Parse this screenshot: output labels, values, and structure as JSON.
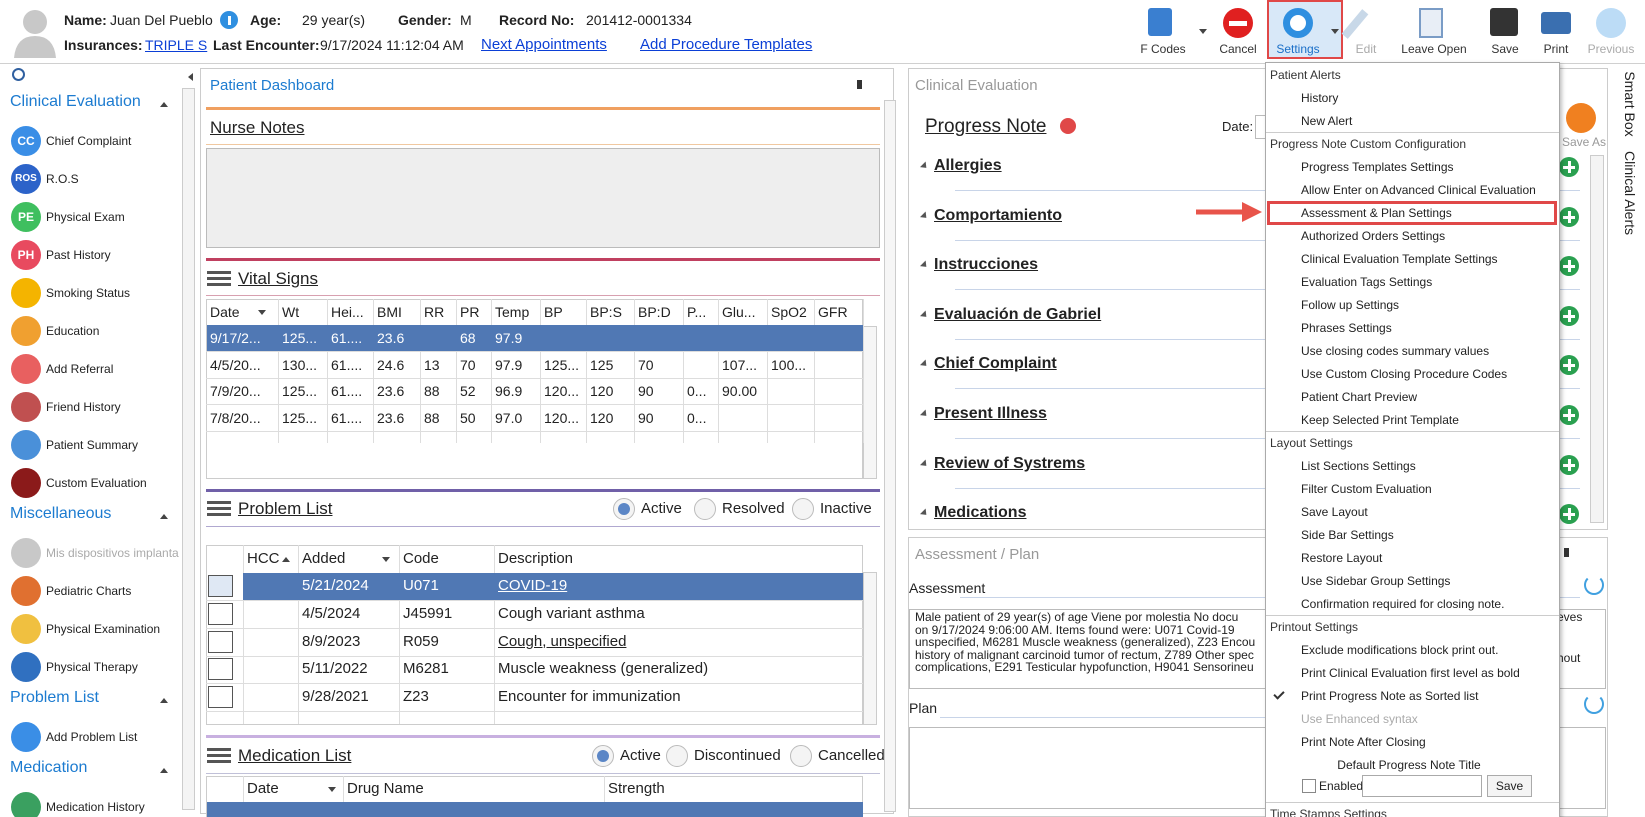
{
  "header": {
    "name_label": "Name:",
    "name": "Juan Del Pueblo",
    "age_label": "Age:",
    "age": "29 year(s)",
    "gender_label": "Gender:",
    "gender": "M",
    "record_label": "Record No:",
    "record": "201412-0001334",
    "insurances_label": "Insurances:",
    "insurance": "TRIPLE S",
    "last_label": "Last Encounter:",
    "last": "9/17/2024 11:12:04 AM",
    "links": [
      "Next Appointments",
      "Add Procedure Templates"
    ]
  },
  "toolbar": {
    "buttons": [
      {
        "label": "F Codes"
      },
      {
        "label": "Cancel"
      },
      {
        "label": "Settings",
        "active": true
      },
      {
        "label": "Edit",
        "disabled": true
      },
      {
        "label": "Leave Open"
      },
      {
        "label": "Save"
      },
      {
        "label": "Print"
      },
      {
        "label": "Previous",
        "disabled": true
      }
    ]
  },
  "sidebar": {
    "sections": [
      {
        "title": "Clinical Evaluation",
        "items": [
          {
            "label": "Chief Complaint",
            "icon": "CC"
          },
          {
            "label": "R.O.S",
            "icon": "ROS"
          },
          {
            "label": "Physical Exam",
            "icon": "PE"
          },
          {
            "label": "Past History",
            "icon": "PH"
          },
          {
            "label": "Smoking Status"
          },
          {
            "label": "Education"
          },
          {
            "label": "Add Referral"
          },
          {
            "label": "Friend History"
          },
          {
            "label": "Patient Summary"
          },
          {
            "label": "Custom Evaluation"
          }
        ]
      },
      {
        "title": "Miscellaneous",
        "items": [
          {
            "label": "Mis dispositivos implanta",
            "disabled": true
          },
          {
            "label": "Pediatric Charts"
          },
          {
            "label": "Physical Examination"
          },
          {
            "label": "Physical Therapy"
          }
        ]
      },
      {
        "title": "Problem List",
        "items": [
          {
            "label": "Add Problem List"
          }
        ]
      },
      {
        "title": "Medication",
        "items": [
          {
            "label": "Medication History"
          }
        ]
      }
    ]
  },
  "dashboard": {
    "title": "Patient Dashboard",
    "nurse_notes": "Nurse Notes",
    "vital_signs": {
      "title": "Vital Signs",
      "columns": [
        "Date",
        "Wt",
        "Hei...",
        "BMI",
        "RR",
        "PR",
        "Temp",
        "BP",
        "BP:S",
        "BP:D",
        "P...",
        "Glu...",
        "SpO2",
        "GFR"
      ],
      "selected_row": 0,
      "rows": [
        [
          "9/17/2...",
          "125...",
          "61....",
          "23.6",
          null,
          "68",
          "97.9",
          null,
          null,
          null,
          null,
          null,
          null,
          null
        ],
        [
          "4/5/20...",
          "130...",
          "61....",
          "24.6",
          "13",
          "70",
          "97.9",
          "125...",
          "125",
          "70",
          null,
          "107...",
          "100...",
          null
        ],
        [
          "7/9/20...",
          "125...",
          "61....",
          "23.6",
          "88",
          "52",
          "96.9",
          "120...",
          "120",
          "90",
          "0...",
          "90.00",
          null,
          null
        ],
        [
          "7/8/20...",
          "125...",
          "61....",
          "23.6",
          "88",
          "50",
          "97.0",
          "120...",
          "120",
          "90",
          "0...",
          null,
          null,
          null
        ]
      ]
    },
    "problem_list": {
      "title": "Problem List",
      "filters": [
        "Active",
        "Resolved",
        "Inactive"
      ],
      "columns": [
        "HCC",
        "Added",
        "Code",
        "Description"
      ],
      "selected_row": 0,
      "rows": [
        {
          "added": "5/21/2024",
          "code": "U071",
          "description": "COVID-19",
          "link": true
        },
        {
          "added": "4/5/2024",
          "code": "J45991",
          "description": "Cough variant asthma"
        },
        {
          "added": "8/9/2023",
          "code": "R059",
          "description": "Cough, unspecified",
          "link": true
        },
        {
          "added": "5/11/2022",
          "code": "M6281",
          "description": "Muscle weakness (generalized)"
        },
        {
          "added": "9/28/2021",
          "code": "Z23",
          "description": "Encounter for immunization"
        }
      ]
    },
    "medication_list": {
      "title": "Medication List",
      "filters": [
        "Active",
        "Discontinued",
        "Cancelled"
      ],
      "columns": [
        "Date",
        "Drug Name",
        "Strength"
      ]
    }
  },
  "clinical": {
    "title": "Clinical Evaluation",
    "progress_note": "Progress Note",
    "date_label": "Date:",
    "save_as": "Save As",
    "sections": [
      "Allergies",
      "Comportamiento",
      "Instrucciones",
      "Evaluación de Gabriel",
      "Chief Complaint",
      "Present Illness",
      "Review of Systrems",
      "Medications"
    ],
    "side_tabs": [
      "Smart Box",
      "Clinical Alerts"
    ]
  },
  "assessment_plan": {
    "title": "Assessment / Plan",
    "assessment_label": "Assessment",
    "assessment_lines": [
      "Male patient of 29 year(s) of age Viene por molestia     No docu",
      "on 9/17/2024 9:06:00 AM.     Items found were:  U071 Covid-19",
      "unspecified, M6281 Muscle weakness (generalized), Z23 Encou",
      "history of malignant carcinoid tumor of rectum, Z789 Other spec",
      "complications, E291 Testicular hypofunction, H9041 Sensorineu"
    ],
    "right_fragments": [
      "eves",
      "hout"
    ],
    "plan_label": "Plan"
  },
  "settings_menu": {
    "groups": [
      {
        "title": "Patient Alerts",
        "items": [
          {
            "label": "History"
          },
          {
            "label": "New Alert"
          }
        ]
      },
      {
        "title": "Progress Note Custom Configuration",
        "items": [
          {
            "label": "Progress Templates Settings"
          },
          {
            "label": "Allow Enter on Advanced Clinical Evaluation"
          },
          {
            "label": "Assessment & Plan Settings",
            "highlighted": true
          },
          {
            "label": "Authorized Orders Settings"
          },
          {
            "label": "Clinical Evaluation Template Settings"
          },
          {
            "label": "Evaluation Tags Settings"
          },
          {
            "label": "Follow up Settings"
          },
          {
            "label": "Phrases Settings"
          },
          {
            "label": "Use closing codes summary values"
          },
          {
            "label": "Use Custom Closing Procedure Codes"
          },
          {
            "label": "Patient Chart Preview"
          },
          {
            "label": "Keep Selected Print Template"
          }
        ]
      },
      {
        "title": "Layout Settings",
        "items": [
          {
            "label": "List Sections Settings"
          },
          {
            "label": "Filter Custom Evaluation"
          },
          {
            "label": "Save Layout"
          },
          {
            "label": "Side Bar Settings"
          },
          {
            "label": "Restore Layout"
          },
          {
            "label": "Use Sidebar Group Settings"
          },
          {
            "label": "Confirmation required for closing note."
          }
        ]
      },
      {
        "title": "Printout Settings",
        "items": [
          {
            "label": "Exclude modifications block print out."
          },
          {
            "label": "Print Clinical Evaluation first level as bold"
          },
          {
            "label": "Print Progress Note as Sorted list",
            "checked": true
          },
          {
            "label": "Use Enhanced syntax",
            "disabled": true
          },
          {
            "label": "Print Note After Closing"
          }
        ],
        "default_title": {
          "label": "Default Progress Note Title",
          "checkbox": "Enabled",
          "button": "Save"
        }
      },
      {
        "title": "Time Stamps Settings"
      }
    ]
  }
}
